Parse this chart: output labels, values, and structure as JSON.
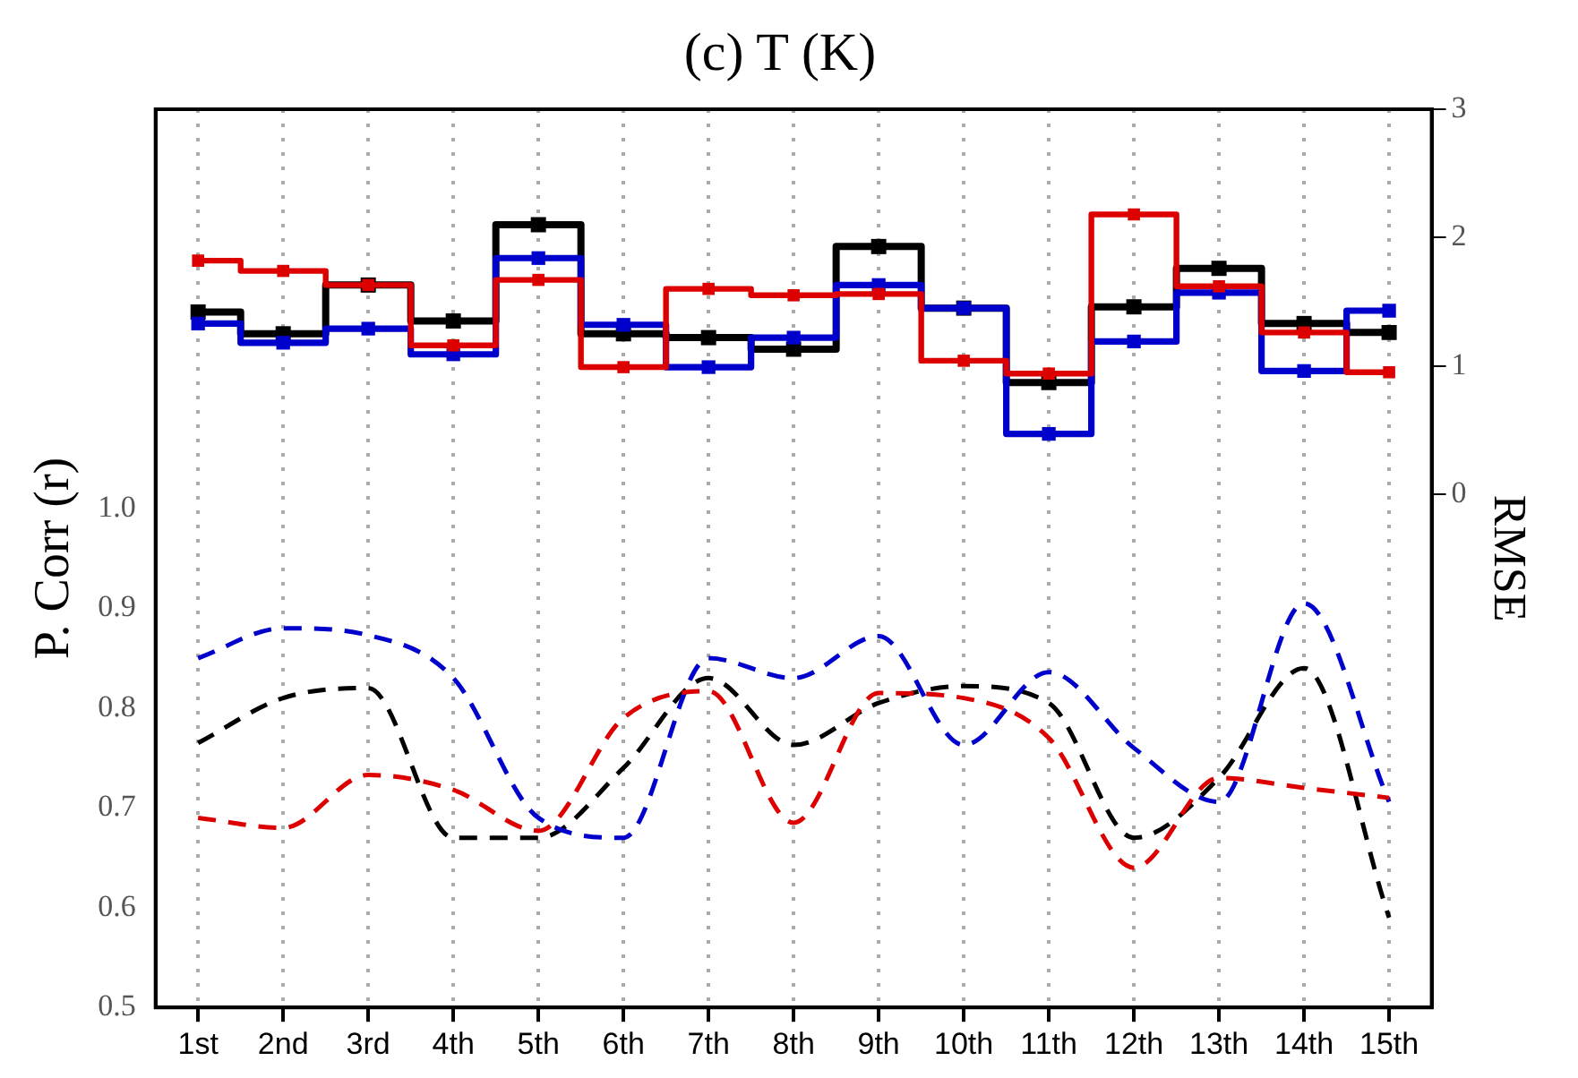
{
  "chart_data": {
    "type": "line",
    "title": "(c) T (K)",
    "ylabel": "P. Corr (r)",
    "y2label": "RMSE",
    "categories": [
      "1st",
      "2nd",
      "3rd",
      "4th",
      "5th",
      "6th",
      "7th",
      "8th",
      "9th",
      "10th",
      "11th",
      "12th",
      "13th",
      "14th",
      "15th"
    ],
    "series": [
      {
        "type": "step",
        "axis": "y2",
        "marker": "square",
        "color": "#000000",
        "values": [
          1.42,
          1.25,
          1.63,
          1.35,
          2.1,
          1.25,
          1.22,
          1.13,
          1.93,
          1.45,
          0.87,
          1.46,
          1.76,
          1.33,
          1.26
        ]
      },
      {
        "type": "step",
        "axis": "y2",
        "marker": "square",
        "color": "#0000cc",
        "values": [
          1.33,
          1.18,
          1.29,
          1.09,
          1.84,
          1.32,
          0.99,
          1.22,
          1.63,
          1.45,
          0.47,
          1.19,
          1.57,
          0.96,
          1.43
        ]
      },
      {
        "type": "step",
        "axis": "y2",
        "marker": "square",
        "color": "#dd0000",
        "values": [
          1.82,
          1.74,
          1.63,
          1.16,
          1.67,
          0.99,
          1.6,
          1.55,
          1.56,
          1.04,
          0.94,
          2.18,
          1.62,
          1.26,
          0.95
        ]
      },
      {
        "type": "line",
        "line_style": "dashed",
        "marker": "none",
        "color": "#000000",
        "values": [
          0.765,
          0.81,
          0.82,
          0.67,
          0.67,
          0.74,
          0.83,
          0.763,
          0.805,
          0.822,
          0.805,
          0.67,
          0.73,
          0.84,
          0.59
        ]
      },
      {
        "type": "line",
        "line_style": "dashed",
        "marker": "none",
        "color": "#0000cc",
        "values": [
          0.85,
          0.88,
          0.873,
          0.83,
          0.69,
          0.67,
          0.85,
          0.83,
          0.872,
          0.763,
          0.836,
          0.76,
          0.706,
          0.905,
          0.706
        ]
      },
      {
        "type": "line",
        "line_style": "dashed",
        "marker": "none",
        "color": "#dd0000",
        "values": [
          0.69,
          0.68,
          0.733,
          0.718,
          0.677,
          0.79,
          0.817,
          0.685,
          0.815,
          0.81,
          0.77,
          0.64,
          0.73,
          0.72,
          0.71
        ]
      }
    ],
    "ylim": [
      0.5,
      1.4
    ],
    "yticks": [
      0.5,
      0.6,
      0.7,
      0.8,
      0.9,
      {
        "value": 1,
        "label": "1.0"
      }
    ],
    "y2lim": [
      -4,
      3
    ],
    "y2ticks": [
      0,
      1,
      2,
      3
    ],
    "grid": "x",
    "legend": false
  }
}
